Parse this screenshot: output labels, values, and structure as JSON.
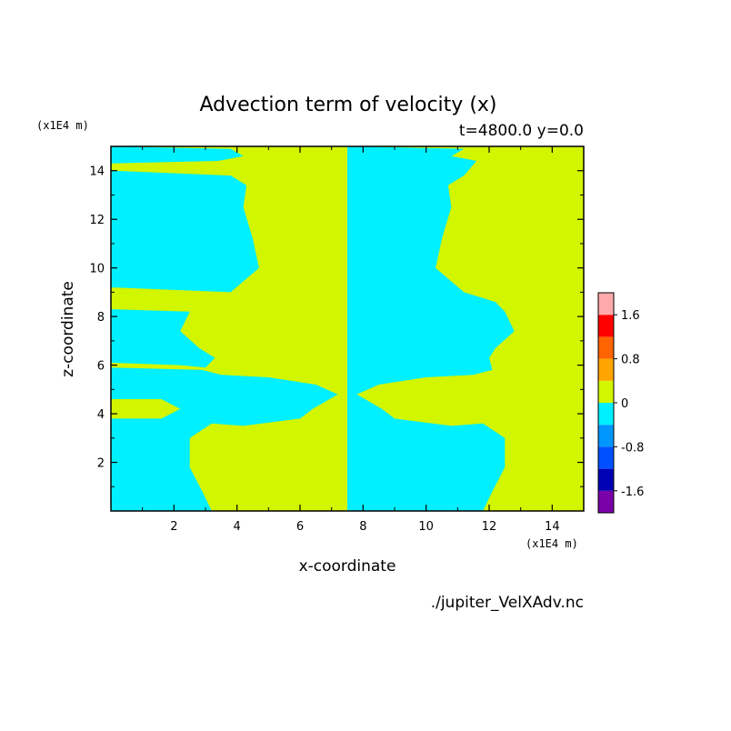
{
  "chart_data": {
    "type": "heatmap",
    "title": "Advection term of velocity (x)",
    "subtitle": "t=4800.0 y=0.0",
    "xlabel": "x-coordinate",
    "ylabel": "z-coordinate",
    "x_unit": "(x1E4 m)",
    "y_unit": "(x1E4 m)",
    "xlim": [
      0,
      15
    ],
    "ylim": [
      0,
      15
    ],
    "x_ticks": [
      2,
      4,
      6,
      8,
      10,
      12,
      14
    ],
    "y_ticks": [
      2,
      4,
      6,
      8,
      10,
      12,
      14
    ],
    "source": "./jupiter_VelXAdv.nc",
    "colorbar": {
      "levels": [
        -2.0,
        -1.6,
        -1.2,
        -0.8,
        -0.4,
        0,
        0.4,
        0.8,
        1.2,
        1.6,
        2.0
      ],
      "labels": [
        "-1.6",
        "-0.8",
        "0",
        "0.8",
        "1.6"
      ],
      "label_values": [
        -1.6,
        -0.8,
        0,
        0.8,
        1.6
      ],
      "colors": [
        "#7a00a8",
        "#0000b4",
        "#0050ff",
        "#0096ff",
        "#00f0ff",
        "#d2f500",
        "#ffa500",
        "#ff6400",
        "#ff0000",
        "#ffaaaa"
      ]
    },
    "background_color": "#d2f500",
    "regions": [
      {
        "name": "left-bottom-lobe",
        "color": "#00f0ff",
        "points": [
          [
            0,
            0
          ],
          [
            3.2,
            0
          ],
          [
            2.9,
            0.8
          ],
          [
            2.5,
            1.8
          ],
          [
            2.5,
            3.0
          ],
          [
            3.2,
            3.6
          ],
          [
            4.2,
            3.5
          ],
          [
            6.0,
            3.8
          ],
          [
            6.4,
            4.2
          ],
          [
            7.2,
            4.8
          ],
          [
            6.5,
            5.2
          ],
          [
            5.0,
            5.5
          ],
          [
            3.5,
            5.6
          ],
          [
            2.9,
            5.8
          ],
          [
            0,
            5.9
          ]
        ]
      },
      {
        "name": "left-mid-lobe",
        "color": "#00f0ff",
        "points": [
          [
            0,
            6.1
          ],
          [
            2.2,
            6.0
          ],
          [
            3.0,
            5.9
          ],
          [
            3.3,
            6.3
          ],
          [
            2.8,
            6.7
          ],
          [
            2.2,
            7.4
          ],
          [
            2.5,
            8.2
          ],
          [
            0,
            8.3
          ]
        ]
      },
      {
        "name": "left-upper-lobe",
        "color": "#00f0ff",
        "points": [
          [
            0,
            9.2
          ],
          [
            3.8,
            9.0
          ],
          [
            4.7,
            10.0
          ],
          [
            4.5,
            11.2
          ],
          [
            4.2,
            12.5
          ],
          [
            4.3,
            13.4
          ],
          [
            3.8,
            13.8
          ],
          [
            0,
            14.0
          ]
        ]
      },
      {
        "name": "left-top-strip",
        "color": "#00f0ff",
        "points": [
          [
            0,
            14.3
          ],
          [
            3.4,
            14.4
          ],
          [
            4.2,
            14.6
          ],
          [
            3.8,
            14.9
          ],
          [
            0,
            15
          ]
        ]
      },
      {
        "name": "right-half",
        "color": "#00f0ff",
        "points": [
          [
            7.5,
            0
          ],
          [
            11.8,
            0
          ],
          [
            12.1,
            0.8
          ],
          [
            12.5,
            1.8
          ],
          [
            12.5,
            3.0
          ],
          [
            11.8,
            3.6
          ],
          [
            10.8,
            3.5
          ],
          [
            9.0,
            3.8
          ],
          [
            8.6,
            4.2
          ],
          [
            7.8,
            4.8
          ],
          [
            8.5,
            5.2
          ],
          [
            10.0,
            5.5
          ],
          [
            11.5,
            5.6
          ],
          [
            12.1,
            5.8
          ],
          [
            12.0,
            6.3
          ],
          [
            12.2,
            6.7
          ],
          [
            12.8,
            7.4
          ],
          [
            12.5,
            8.2
          ],
          [
            12.2,
            8.6
          ],
          [
            11.2,
            9.0
          ],
          [
            10.3,
            10.0
          ],
          [
            10.5,
            11.2
          ],
          [
            10.8,
            12.5
          ],
          [
            10.7,
            13.4
          ],
          [
            11.2,
            13.8
          ],
          [
            11.6,
            14.4
          ],
          [
            10.8,
            14.6
          ],
          [
            11.2,
            14.9
          ],
          [
            7.5,
            15
          ]
        ]
      },
      {
        "name": "left-small-green-lobe",
        "color": "#d2f500",
        "points": [
          [
            0,
            3.8
          ],
          [
            1.6,
            3.8
          ],
          [
            2.2,
            4.2
          ],
          [
            1.6,
            4.6
          ],
          [
            0,
            4.6
          ]
        ]
      },
      {
        "name": "right-small-green-lobe",
        "color": "#d2f500",
        "points": [
          [
            15,
            3.8
          ],
          [
            13.4,
            3.8
          ],
          [
            12.8,
            4.2
          ],
          [
            13.4,
            4.6
          ],
          [
            15,
            4.6
          ]
        ]
      },
      {
        "name": "right-green-band-1",
        "color": "#d2f500",
        "points": [
          [
            15,
            5.9
          ],
          [
            12.2,
            6.0
          ],
          [
            12.2,
            5.8
          ],
          [
            15,
            5.7
          ]
        ]
      },
      {
        "name": "right-green-band-2",
        "color": "#d2f500",
        "points": [
          [
            15,
            8.3
          ],
          [
            12.6,
            8.2
          ],
          [
            12.2,
            9.0
          ],
          [
            15,
            9.1
          ]
        ]
      },
      {
        "name": "right-green-band-3",
        "color": "#d2f500",
        "points": [
          [
            15,
            14.0
          ],
          [
            11.2,
            13.8
          ],
          [
            11.6,
            14.3
          ],
          [
            15,
            14.3
          ]
        ]
      }
    ]
  }
}
